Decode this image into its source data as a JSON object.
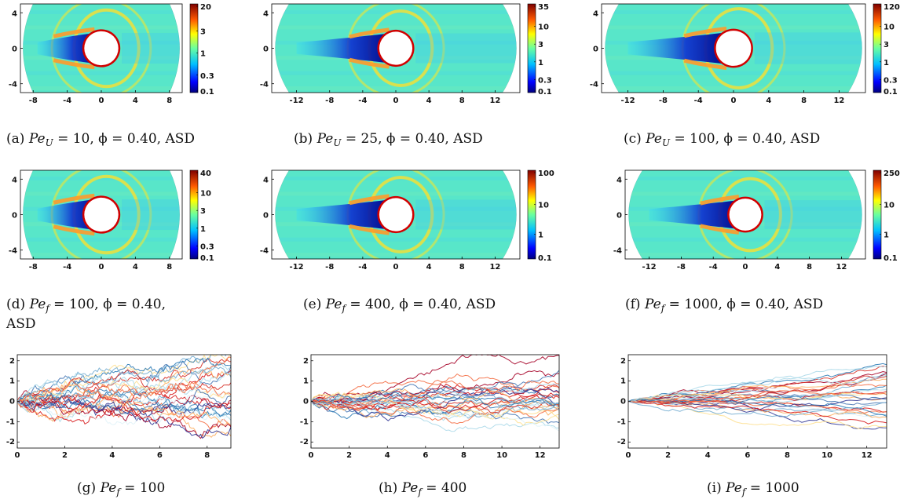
{
  "figure": {
    "fields": [
      {
        "id": "a",
        "caption": {
          "label": "(a)",
          "pe": "Pe",
          "sub": "U",
          "rest": "= 10, ϕ = 0.40, ASD"
        },
        "xticks": [
          "-8",
          "-4",
          "0",
          "4",
          "8"
        ],
        "yticks": [
          "4",
          "0",
          "-4"
        ],
        "cbar": [
          "20",
          "3",
          "1",
          "0.3",
          "0.1"
        ]
      },
      {
        "id": "b",
        "caption": {
          "label": "(b)",
          "pe": "Pe",
          "sub": "U",
          "rest": "= 25, ϕ = 0.40, ASD"
        },
        "xticks": [
          "-12",
          "-8",
          "-4",
          "0",
          "4",
          "8",
          "12"
        ],
        "yticks": [
          "4",
          "0",
          "-4"
        ],
        "cbar": [
          "35",
          "10",
          "3",
          "1",
          "0.3",
          "0.1"
        ]
      },
      {
        "id": "c",
        "caption": {
          "label": "(c)",
          "pe": "Pe",
          "sub": "U",
          "rest": "= 100, ϕ = 0.40, ASD"
        },
        "xticks": [
          "-12",
          "-8",
          "-4",
          "0",
          "4",
          "8",
          "12"
        ],
        "yticks": [
          "4",
          "0",
          "-4"
        ],
        "cbar": [
          "120",
          "10",
          "3",
          "1",
          "0.3",
          "0.1"
        ]
      },
      {
        "id": "d",
        "caption": {
          "label": "(d)",
          "pe": "Pe",
          "sub": "f",
          "rest": "= 100, ϕ = 0.40,",
          "line2": "ASD"
        },
        "xticks": [
          "-8",
          "-4",
          "0",
          "4",
          "8"
        ],
        "yticks": [
          "4",
          "0",
          "-4"
        ],
        "cbar": [
          "40",
          "10",
          "3",
          "1",
          "0.3",
          "0.1"
        ]
      },
      {
        "id": "e",
        "caption": {
          "label": "(e)",
          "pe": "Pe",
          "sub": "f",
          "rest": "= 400, ϕ = 0.40, ASD"
        },
        "xticks": [
          "-12",
          "-8",
          "-4",
          "0",
          "4",
          "8",
          "12"
        ],
        "yticks": [
          "4",
          "0",
          "-4"
        ],
        "cbar": [
          "100",
          "10",
          "1",
          "0.1"
        ]
      },
      {
        "id": "f",
        "caption": {
          "label": "(f)",
          "pe": "Pe",
          "sub": "f",
          "rest": "= 1000, ϕ = 0.40, ASD"
        },
        "xticks": [
          "-12",
          "-8",
          "-4",
          "0",
          "4",
          "8",
          "12"
        ],
        "yticks": [
          "4",
          "0",
          "-4"
        ],
        "cbar": [
          "250",
          "10",
          "1",
          "0.1"
        ]
      }
    ],
    "trajectories": [
      {
        "id": "g",
        "caption": {
          "label": "(g)",
          "pe": "Pe",
          "sub": "f",
          "rest": "= 100"
        }
      },
      {
        "id": "h",
        "caption": {
          "label": "(h)",
          "pe": "Pe",
          "sub": "f",
          "rest": "= 400"
        }
      },
      {
        "id": "i",
        "caption": {
          "label": "(i)",
          "pe": "Pe",
          "sub": "f",
          "rest": "= 1000"
        }
      }
    ]
  },
  "chart_data": [
    {
      "type": "line",
      "id": "g",
      "xticks": [
        "0",
        "2",
        "4",
        "6",
        "8"
      ],
      "yticks": [
        "2",
        "1",
        "0",
        "-1",
        "-2"
      ],
      "xlim": [
        0,
        9
      ],
      "ylim": [
        -2.3,
        2.3
      ],
      "n_series": 30,
      "spread": 0.65,
      "roughness": "high"
    },
    {
      "type": "line",
      "id": "h",
      "xticks": [
        "0",
        "2",
        "4",
        "6",
        "8",
        "10",
        "12"
      ],
      "yticks": [
        "2",
        "1",
        "0",
        "-1",
        "-2"
      ],
      "xlim": [
        0,
        13
      ],
      "ylim": [
        -2.3,
        2.3
      ],
      "n_series": 30,
      "spread": 0.5,
      "roughness": "medium"
    },
    {
      "type": "line",
      "id": "i",
      "xticks": [
        "0",
        "2",
        "4",
        "6",
        "8",
        "10",
        "12"
      ],
      "yticks": [
        "2",
        "1",
        "0",
        "-1",
        "-2"
      ],
      "xlim": [
        0,
        13
      ],
      "ylim": [
        -2.3,
        2.3
      ],
      "n_series": 30,
      "spread": 0.48,
      "roughness": "low"
    }
  ]
}
